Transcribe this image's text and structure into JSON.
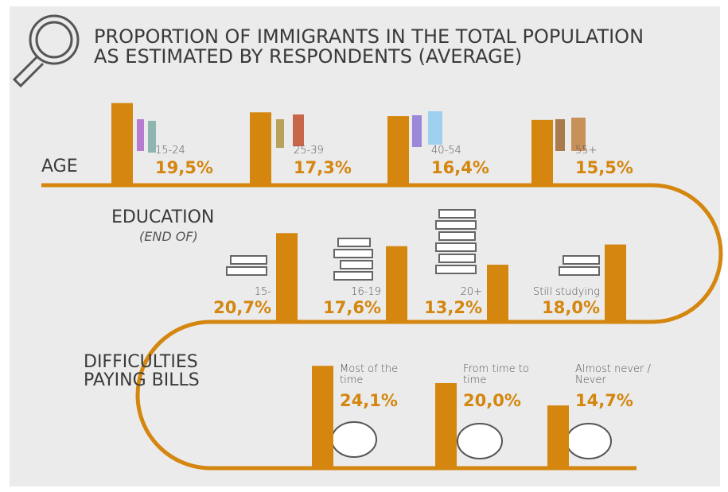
{
  "title": "PROPORTION OF IMMIGRANTS IN THE TOTAL POPULATION AS ESTIMATED BY RESPONDENTS (AVERAGE)",
  "chart_data": [
    {
      "type": "bar",
      "title": "AGE",
      "categories": [
        "15-24",
        "25-39",
        "40-54",
        "55+"
      ],
      "values": [
        19.5,
        17.3,
        16.4,
        15.5
      ],
      "value_labels": [
        "19,5%",
        "17,3%",
        "16,4%",
        "15,5%"
      ],
      "color": "#d4860f"
    },
    {
      "type": "bar",
      "title": "EDUCATION",
      "subtitle": "(END OF)",
      "categories": [
        "15-",
        "16-19",
        "20+",
        "Still studying"
      ],
      "values": [
        20.7,
        17.6,
        13.2,
        18.0
      ],
      "value_labels": [
        "20,7%",
        "17,6%",
        "13,2%",
        "18,0%"
      ],
      "color": "#d4860f"
    },
    {
      "type": "bar",
      "title": "DIFFICULTIES PAYING BILLS",
      "categories": [
        "Most of the time",
        "From time to time",
        "Almost never / Never"
      ],
      "values": [
        24.1,
        20.0,
        14.7
      ],
      "value_labels": [
        "24,1%",
        "20,0%",
        "14,7%"
      ],
      "color": "#d4860f"
    }
  ]
}
